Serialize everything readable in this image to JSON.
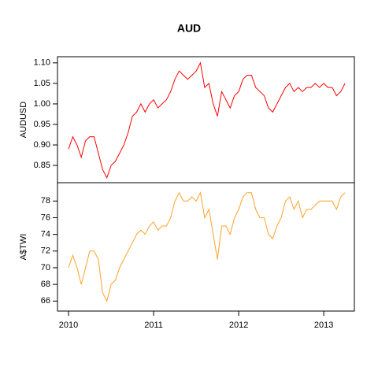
{
  "chart_data": {
    "type": "line",
    "title": "AUD",
    "x": [
      2010.0,
      2010.05,
      2010.1,
      2010.15,
      2010.2,
      2010.25,
      2010.3,
      2010.35,
      2010.4,
      2010.45,
      2010.5,
      2010.55,
      2010.6,
      2010.65,
      2010.7,
      2010.75,
      2010.8,
      2010.85,
      2010.9,
      2010.95,
      2011.0,
      2011.05,
      2011.1,
      2011.15,
      2011.2,
      2011.25,
      2011.3,
      2011.35,
      2011.4,
      2011.45,
      2011.5,
      2011.55,
      2011.6,
      2011.65,
      2011.7,
      2011.75,
      2011.8,
      2011.85,
      2011.9,
      2011.95,
      2012.0,
      2012.05,
      2012.1,
      2012.15,
      2012.2,
      2012.25,
      2012.3,
      2012.35,
      2012.4,
      2012.45,
      2012.5,
      2012.55,
      2012.6,
      2012.65,
      2012.7,
      2012.75,
      2012.8,
      2012.85,
      2012.9,
      2012.95,
      2013.0,
      2013.05,
      2013.1,
      2013.15,
      2013.2,
      2013.25
    ],
    "xlim": [
      2009.87,
      2013.36
    ],
    "xticks": [
      2010,
      2011,
      2012,
      2013
    ],
    "panels": [
      {
        "ylabel": "AUDUSD",
        "color": "#ff0000",
        "ylim": [
          0.808,
          1.115
        ],
        "yticks": [
          0.85,
          {
            "value": 0.9,
            "label": "0.90"
          },
          0.95,
          {
            "value": 1,
            "label": "1.00"
          },
          1.05,
          {
            "value": 1.1,
            "label": "1.10"
          }
        ],
        "values": [
          0.89,
          0.92,
          0.9,
          0.87,
          0.91,
          0.92,
          0.92,
          0.88,
          0.84,
          0.82,
          0.85,
          0.86,
          0.88,
          0.9,
          0.93,
          0.97,
          0.98,
          1.0,
          0.98,
          1.0,
          1.01,
          0.99,
          1.0,
          1.01,
          1.03,
          1.06,
          1.08,
          1.07,
          1.06,
          1.07,
          1.08,
          1.1,
          1.04,
          1.05,
          1.0,
          0.97,
          1.03,
          1.01,
          0.99,
          1.02,
          1.03,
          1.06,
          1.07,
          1.07,
          1.04,
          1.03,
          1.02,
          0.99,
          0.98,
          1.0,
          1.02,
          1.04,
          1.05,
          1.03,
          1.04,
          1.03,
          1.04,
          1.04,
          1.05,
          1.04,
          1.05,
          1.04,
          1.04,
          1.02,
          1.03,
          1.05
        ]
      },
      {
        "ylabel": "A$TWI",
        "color": "#ffa126",
        "ylim": [
          64.8,
          80.2
        ],
        "yticks": [
          66,
          68,
          70,
          72,
          74,
          76,
          78
        ],
        "values": [
          70,
          71.5,
          70,
          68,
          70,
          72,
          72,
          71,
          67,
          66,
          68,
          68.5,
          70,
          71,
          72,
          73,
          74,
          74.5,
          74,
          75,
          75.5,
          74.5,
          75,
          75,
          76,
          78,
          79,
          78,
          78,
          78.5,
          78,
          79,
          76,
          77,
          74,
          71,
          75,
          75,
          74,
          76,
          77,
          78.5,
          79,
          79,
          77,
          76,
          76,
          74,
          73.5,
          75,
          76,
          78,
          78.5,
          77,
          78,
          76,
          77,
          77,
          77.5,
          78,
          78,
          78,
          78,
          77,
          78.5,
          79
        ]
      }
    ]
  }
}
